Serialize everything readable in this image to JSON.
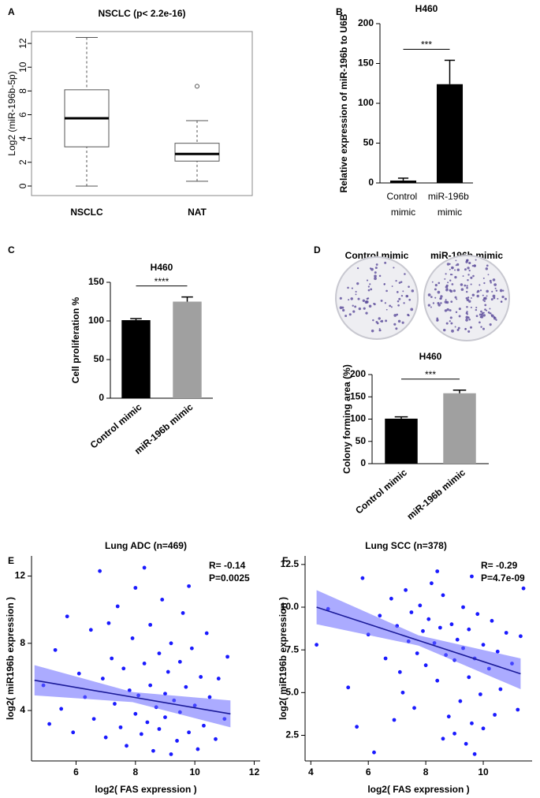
{
  "chart_data": [
    {
      "type": "box",
      "panel": "A",
      "title": "NSCLC (p< 2.2e-16)",
      "y_label": "Log2 (miR-196b-5p)",
      "categories": [
        "NSCLC",
        "NAT"
      ],
      "boxes": [
        {
          "min": 0,
          "q1": 3.3,
          "median": 5.7,
          "q3": 8.1,
          "max": 12.5,
          "outliers": []
        },
        {
          "min": 0.4,
          "q1": 2.1,
          "median": 2.7,
          "q3": 3.6,
          "max": 5.5,
          "outliers": [
            8.4
          ]
        }
      ],
      "ylim": [
        -0.8,
        13
      ],
      "yticks": [
        0,
        2,
        4,
        6,
        8,
        10,
        12
      ],
      "color": "#555555"
    },
    {
      "type": "bar",
      "panel": "B",
      "title": "H460",
      "y_label": "Relative expression of miR-196b to U6B",
      "categories": [
        "Control mimic",
        "miR-196b mimic"
      ],
      "values": [
        3,
        124
      ],
      "errors": [
        3,
        30
      ],
      "colors": [
        "#000000",
        "#000000"
      ],
      "significance": "***",
      "ylim": [
        0,
        200
      ],
      "yticks": [
        0,
        50,
        100,
        150,
        200
      ]
    },
    {
      "type": "bar",
      "panel": "C",
      "title": "H460",
      "y_label": "Cell proliferation %",
      "categories": [
        "Control mimic",
        "miR-196b mimic"
      ],
      "values": [
        101,
        125
      ],
      "errors": [
        2,
        6
      ],
      "colors": [
        "#000000",
        "#a0a0a0"
      ],
      "significance": "****",
      "ylim": [
        0,
        150
      ],
      "yticks": [
        0,
        50,
        100,
        150
      ]
    },
    {
      "type": "bar",
      "panel": "D",
      "title": "H460",
      "y_label": "Colony forming area (%)",
      "dish_labels": [
        "Control mimic",
        "miR-196b mimic"
      ],
      "categories": [
        "Control mimic",
        "miR-196b mimic"
      ],
      "values": [
        101,
        158
      ],
      "errors": [
        4,
        7
      ],
      "colors": [
        "#000000",
        "#a0a0a0"
      ],
      "significance": "***",
      "ylim": [
        0,
        200
      ],
      "yticks": [
        0,
        50,
        100,
        150,
        200
      ]
    },
    {
      "type": "scatter",
      "panel": "E",
      "title": "Lung ADC (n=469)",
      "annotations": [
        "R= -0.14",
        "P=0.0025"
      ],
      "x_label": "log2( FAS expression )",
      "y_label": "log2( miR196b expression )",
      "color": "#1a1aff",
      "x": [
        4.9,
        5.1,
        5.3,
        5.5,
        5.7,
        5.9,
        6.1,
        6.3,
        6.5,
        6.6,
        6.8,
        6.9,
        7.0,
        7.2,
        7.3,
        7.4,
        7.5,
        7.6,
        7.7,
        7.8,
        7.9,
        8.0,
        8.0,
        8.1,
        8.2,
        8.3,
        8.4,
        8.5,
        8.5,
        8.6,
        8.7,
        8.8,
        8.8,
        8.9,
        9.0,
        9.0,
        9.1,
        9.2,
        9.2,
        9.3,
        9.4,
        9.5,
        9.5,
        9.6,
        9.7,
        9.8,
        9.9,
        10.0,
        10.1,
        10.2,
        10.3,
        10.4,
        10.5,
        10.7,
        10.8,
        11.0,
        11.1,
        9.8,
        8.3,
        7.1
      ],
      "y": [
        5.5,
        3.2,
        7.6,
        4.1,
        9.6,
        2.7,
        6.2,
        4.8,
        8.8,
        3.5,
        12.3,
        5.9,
        2.4,
        7.1,
        4.4,
        10.2,
        3.0,
        6.5,
        1.9,
        5.2,
        8.3,
        3.8,
        11.3,
        4.9,
        2.6,
        6.8,
        3.3,
        9.1,
        5.5,
        1.6,
        4.2,
        7.4,
        2.9,
        10.6,
        5.0,
        3.6,
        6.3,
        1.4,
        8.0,
        4.6,
        2.2,
        6.9,
        3.9,
        9.8,
        5.4,
        2.7,
        7.7,
        4.3,
        1.7,
        6.0,
        3.1,
        8.6,
        4.8,
        2.3,
        5.9,
        3.5,
        7.2,
        11.4,
        12.5,
        9.2
      ],
      "fit": {
        "x": [
          4.6,
          7.9,
          11.2
        ],
        "y": [
          5.8,
          4.8,
          3.8
        ],
        "lower": [
          4.9,
          4.5,
          3.0
        ],
        "upper": [
          6.7,
          5.1,
          4.6
        ]
      },
      "xlim": [
        4.5,
        12.2
      ],
      "xticks": [
        6,
        8,
        10,
        12
      ],
      "ylim": [
        1,
        13.2
      ],
      "yticks": [
        4,
        8,
        12
      ]
    },
    {
      "type": "scatter",
      "panel": "F",
      "title": "Lung SCC (n=378)",
      "annotations": [
        "R= -0.29",
        "P=4.7e-09"
      ],
      "x_label": "log2( FAS expression )",
      "y_label": "log2( miR196b expression )",
      "color": "#1a1aff",
      "x": [
        4.2,
        4.6,
        5.3,
        5.6,
        5.8,
        6.0,
        6.2,
        6.4,
        6.6,
        6.8,
        7.0,
        7.1,
        7.3,
        7.4,
        7.5,
        7.6,
        7.7,
        7.8,
        7.9,
        8.0,
        8.1,
        8.2,
        8.3,
        8.4,
        8.5,
        8.6,
        8.7,
        8.8,
        8.9,
        9.0,
        9.0,
        9.1,
        9.2,
        9.3,
        9.3,
        9.4,
        9.5,
        9.5,
        9.6,
        9.7,
        9.7,
        9.8,
        9.9,
        10.0,
        10.0,
        10.2,
        10.3,
        10.4,
        10.5,
        10.6,
        10.8,
        11.0,
        11.2,
        11.3,
        11.4,
        8.4,
        9.6,
        7.2,
        6.9,
        8.6
      ],
      "y": [
        7.8,
        9.9,
        5.3,
        3.0,
        11.7,
        8.4,
        1.5,
        9.5,
        7.0,
        10.5,
        8.9,
        6.2,
        11.0,
        8.0,
        9.7,
        4.1,
        7.3,
        10.1,
        8.6,
        6.6,
        9.3,
        11.4,
        7.9,
        5.7,
        8.8,
        10.7,
        7.2,
        3.6,
        9.0,
        6.9,
        2.6,
        8.1,
        4.5,
        10.0,
        7.6,
        2.0,
        5.9,
        8.7,
        3.2,
        7.0,
        1.4,
        9.6,
        4.9,
        7.8,
        2.9,
        6.4,
        9.2,
        3.7,
        7.4,
        5.2,
        8.5,
        6.7,
        4.0,
        8.3,
        11.1,
        12.1,
        11.8,
        5.0,
        3.4,
        2.3
      ],
      "fit": {
        "x": [
          4.2,
          7.75,
          11.3
        ],
        "y": [
          10.0,
          8.05,
          6.1
        ],
        "lower": [
          9.0,
          7.75,
          5.2
        ],
        "upper": [
          11.0,
          8.35,
          7.0
        ]
      },
      "xlim": [
        3.8,
        11.7
      ],
      "xticks": [
        4,
        6,
        8,
        10
      ],
      "ylim": [
        1,
        13
      ],
      "yticks": [
        2.5,
        {
          "value": 5,
          "label": "5.0"
        },
        {
          "value": 7.5,
          "label": "7.5"
        },
        {
          "value": 10,
          "label": "10.0"
        },
        12.5
      ]
    }
  ]
}
